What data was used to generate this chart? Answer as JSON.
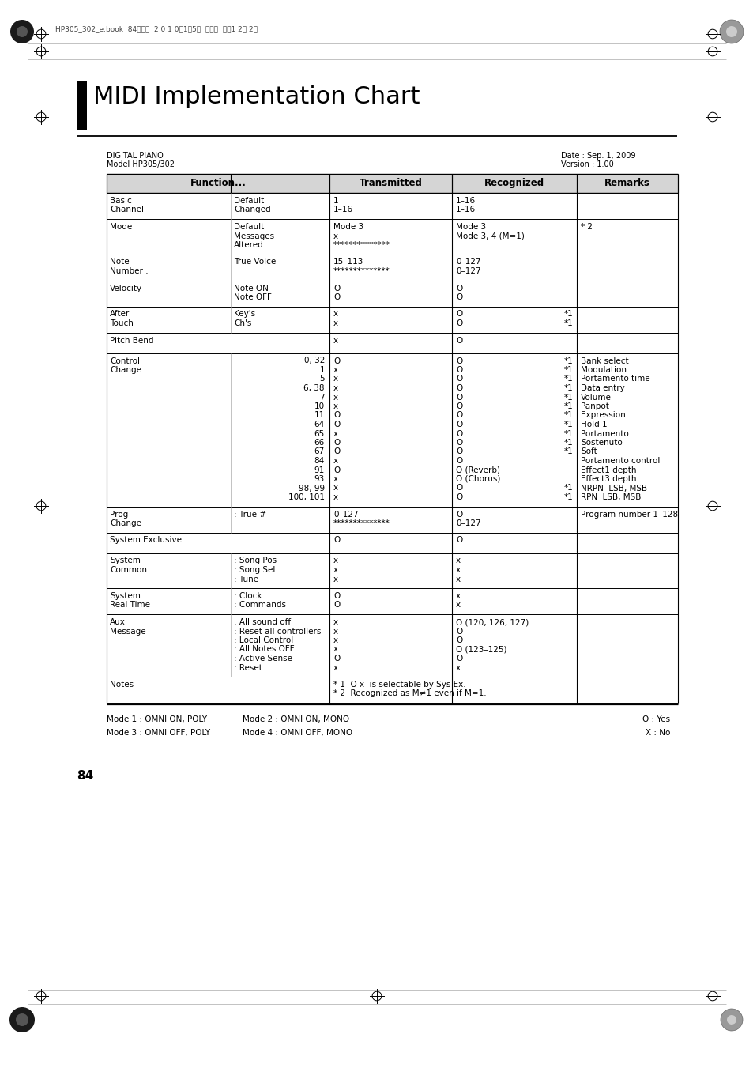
{
  "title": "MIDI Implementation Chart",
  "device_name": "DIGITAL PIANO",
  "model": "Model HP305/302",
  "date": "Date : Sep. 1, 2009",
  "version": "Version : 1.00",
  "col_headers": [
    "Function...",
    "Transmitted",
    "Recognized",
    "Remarks"
  ],
  "rows": [
    {
      "func1": "Basic\nChannel",
      "func2": "Default\nChanged",
      "transmitted": "1\n1–16",
      "recognized": "1–16\n1–16",
      "recognized_note": "",
      "remarks": ""
    },
    {
      "func1": "Mode",
      "func2": "Default\nMessages\nAltered",
      "transmitted": "Mode 3\nx\n**************",
      "recognized": "Mode 3\nMode 3, 4 (M=1)",
      "recognized_note": "",
      "remarks": "* 2"
    },
    {
      "func1": "Note\nNumber :",
      "func2": "True Voice",
      "transmitted": "15–113\n**************",
      "recognized": "0–127\n0–127",
      "recognized_note": "",
      "remarks": ""
    },
    {
      "func1": "Velocity",
      "func2": "Note ON\nNote OFF",
      "transmitted": "O\nO",
      "recognized": "O\nO",
      "recognized_note": "",
      "remarks": ""
    },
    {
      "func1": "After\nTouch",
      "func2": "Key's\nCh's",
      "transmitted": "x\nx",
      "recognized": "O\nO",
      "recognized_note": "*1\n*1",
      "remarks": ""
    },
    {
      "func1": "Pitch Bend",
      "func2": "",
      "transmitted": "x",
      "recognized": "O",
      "recognized_note": "",
      "remarks": ""
    },
    {
      "func1": "Control\nChange",
      "func2": "0, 32\n1\n5\n6, 38\n7\n10\n11\n64\n65\n66\n67\n84\n91\n93\n98, 99\n100, 101",
      "transmitted": "O\nx\nx\nx\nx\nx\nO\nO\nx\nO\nO\nx\nO\nx\nx\nx",
      "recognized": "O\nO\nO\nO\nO\nO\nO\nO\nO\nO\nO\nO\nO (Reverb)\nO (Chorus)\nO\nO",
      "recognized_note": "*1\n*1\n*1\n*1\n*1\n*1\n*1\n*1\n*1\n*1\n*1\n\n\n\n*1\n*1",
      "remarks": "Bank select\nModulation\nPortamento time\nData entry\nVolume\nPanpot\nExpression\nHold 1\nPortamento\nSostenuto\nSoft\nPortamento control\nEffect1 depth\nEffect3 depth\nNRPN  LSB, MSB\nRPN  LSB, MSB"
    },
    {
      "func1": "Prog\nChange",
      "func2": ": True #",
      "transmitted": "0–127\n**************",
      "recognized": "O\n0–127",
      "recognized_note": "",
      "remarks": "Program number 1–128"
    },
    {
      "func1": "System Exclusive",
      "func2": "",
      "transmitted": "O",
      "recognized": "O",
      "recognized_note": "",
      "remarks": ""
    },
    {
      "func1": "System\nCommon",
      "func2": ": Song Pos\n: Song Sel\n: Tune",
      "transmitted": "x\nx\nx",
      "recognized": "x\nx\nx",
      "recognized_note": "",
      "remarks": ""
    },
    {
      "func1": "System\nReal Time",
      "func2": ": Clock\n: Commands",
      "transmitted": "O\nO",
      "recognized": "x\nx",
      "recognized_note": "",
      "remarks": ""
    },
    {
      "func1": "Aux\nMessage",
      "func2": ": All sound off\n: Reset all controllers\n: Local Control\n: All Notes OFF\n: Active Sense\n: Reset",
      "transmitted": "x\nx\nx\nx\nO\nx",
      "recognized": "O (120, 126, 127)\nO\nO\nO (123–125)\nO\nx",
      "recognized_note": "",
      "remarks": ""
    },
    {
      "func1": "Notes",
      "func2": "",
      "transmitted": "* 1  O x  is selectable by Sys Ex.\n* 2  Recognized as M≠1 even if M=1.",
      "recognized": "",
      "recognized_note": "",
      "remarks": ""
    }
  ],
  "footer_modes": [
    [
      "Mode 1 : OMNI ON, POLY",
      "Mode 2 : OMNI ON, MONO",
      "O : Yes"
    ],
    [
      "Mode 3 : OMNI OFF, POLY",
      "Mode 4 : OMNI OFF, MONO",
      "X : No"
    ]
  ],
  "page_number": "84"
}
